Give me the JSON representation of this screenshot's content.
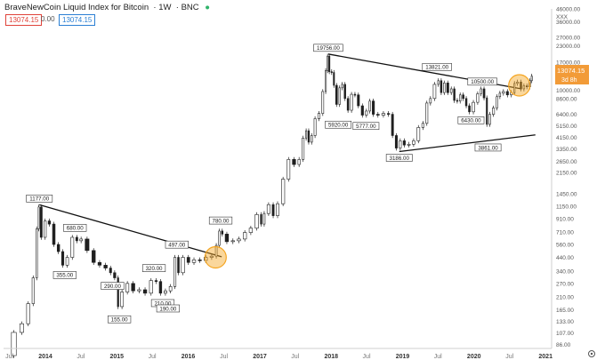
{
  "header": {
    "title": "BraveNewCoin Liquid Index for Bitcoin",
    "interval": "1W",
    "exchange": "BNC",
    "value_a": "13074.15",
    "change": "0.00",
    "value_b": "13074.15"
  },
  "price_tag": {
    "value": "13074.15",
    "countdown": "3d 8h"
  },
  "colors": {
    "up": "#26a69a",
    "down": "#ef5350",
    "candle": "#1f1f1f",
    "highlight": "#f5a623",
    "trend": "#111111"
  },
  "chart_data": {
    "type": "candlestick",
    "title": "BraveNewCoin Liquid Index for Bitcoin",
    "scale": "log",
    "ylim": [
      80,
      46000
    ],
    "xlim": [
      "2013-06",
      "2021-02"
    ],
    "y_ticks": [
      "46000.00",
      "XXX",
      "36000.00",
      "27000.00",
      "23000.00",
      "17000.00",
      "13000.00",
      "10000.00",
      "8600.00",
      "6400.00",
      "5150.00",
      "4150.00",
      "3350.00",
      "2650.00",
      "2150.00",
      "1450.00",
      "1150.00",
      "910.00",
      "710.00",
      "560.00",
      "440.00",
      "340.00",
      "270.00",
      "210.00",
      "165.00",
      "133.00",
      "107.00",
      "86.00"
    ],
    "x_ticks": [
      "Jul",
      "2014",
      "Jul",
      "2015",
      "Jul",
      "2016",
      "Jul",
      "2017",
      "Jul",
      "2018",
      "Jul",
      "2019",
      "Jul",
      "2020",
      "Jul",
      "2021"
    ],
    "annotations": [
      {
        "label": "1177.00",
        "date": "2013-12-01",
        "value": 1177,
        "pos": "above"
      },
      {
        "label": "680.00",
        "date": "2014-06-01",
        "value": 680,
        "pos": "above"
      },
      {
        "label": "355.00",
        "date": "2014-04-10",
        "value": 355,
        "pos": "below"
      },
      {
        "label": "290.00",
        "date": "2014-12-10",
        "value": 290,
        "pos": "below"
      },
      {
        "label": "155.00",
        "date": "2015-01-14",
        "value": 155,
        "pos": "below"
      },
      {
        "label": "320.00",
        "date": "2015-07-10",
        "value": 320,
        "pos": "above"
      },
      {
        "label": "210.00",
        "date": "2015-08-24",
        "value": 210,
        "pos": "below"
      },
      {
        "label": "190.00",
        "date": "2015-09-20",
        "value": 190,
        "pos": "below"
      },
      {
        "label": "497.00",
        "date": "2015-11-04",
        "value": 497,
        "pos": "above"
      },
      {
        "label": "780.00",
        "date": "2016-06-15",
        "value": 780,
        "pos": "above"
      },
      {
        "label": "19756.00",
        "date": "2017-12-17",
        "value": 19756,
        "pos": "above"
      },
      {
        "label": "5920.00",
        "date": "2018-02-06",
        "value": 5920,
        "pos": "below"
      },
      {
        "label": "5777.00",
        "date": "2018-06-28",
        "value": 5777,
        "pos": "below"
      },
      {
        "label": "3186.00",
        "date": "2018-12-15",
        "value": 3186,
        "pos": "below"
      },
      {
        "label": "13821.00",
        "date": "2019-06-26",
        "value": 13821,
        "pos": "above"
      },
      {
        "label": "10500.00",
        "date": "2020-02-13",
        "value": 10500,
        "pos": "above"
      },
      {
        "label": "6430.00",
        "date": "2019-12-17",
        "value": 6430,
        "pos": "below"
      },
      {
        "label": "3861.00",
        "date": "2020-03-13",
        "value": 3861,
        "pos": "below"
      }
    ],
    "trendlines": [
      {
        "from": {
          "date": "2013-12-01",
          "value": 1177
        },
        "to": {
          "date": "2016-06-20",
          "value": 445
        }
      },
      {
        "from": {
          "date": "2017-12-17",
          "value": 19756
        },
        "to": {
          "date": "2020-09-01",
          "value": 10300
        }
      },
      {
        "from": {
          "date": "2018-12-15",
          "value": 3186
        },
        "to": {
          "date": "2020-11-10",
          "value": 4350
        }
      }
    ],
    "highlights": [
      {
        "date": "2016-05-20",
        "value": 440
      },
      {
        "date": "2020-08-20",
        "value": 11000
      }
    ],
    "series": [
      {
        "values": [
          [
            "2013-07-01",
            70
          ],
          [
            "2013-08-15",
            108
          ],
          [
            "2013-09-20",
            127
          ],
          [
            "2013-10-20",
            185
          ],
          [
            "2013-11-10",
            300
          ],
          [
            "2013-11-25",
            750
          ],
          [
            "2013-12-01",
            1130
          ],
          [
            "2013-12-20",
            640
          ],
          [
            "2014-01-10",
            870
          ],
          [
            "2014-02-01",
            820
          ],
          [
            "2014-02-25",
            560
          ],
          [
            "2014-03-20",
            490
          ],
          [
            "2014-04-10",
            380
          ],
          [
            "2014-05-05",
            440
          ],
          [
            "2014-06-01",
            640
          ],
          [
            "2014-06-20",
            600
          ],
          [
            "2014-07-15",
            620
          ],
          [
            "2014-08-20",
            500
          ],
          [
            "2014-09-20",
            400
          ],
          [
            "2014-10-20",
            380
          ],
          [
            "2014-11-20",
            360
          ],
          [
            "2014-12-10",
            330
          ],
          [
            "2015-01-01",
            300
          ],
          [
            "2015-01-14",
            175
          ],
          [
            "2015-02-10",
            230
          ],
          [
            "2015-03-10",
            270
          ],
          [
            "2015-04-10",
            235
          ],
          [
            "2015-05-10",
            240
          ],
          [
            "2015-06-10",
            225
          ],
          [
            "2015-07-10",
            285
          ],
          [
            "2015-08-01",
            280
          ],
          [
            "2015-08-24",
            225
          ],
          [
            "2015-09-20",
            235
          ],
          [
            "2015-10-15",
            255
          ],
          [
            "2015-11-04",
            440
          ],
          [
            "2015-11-20",
            330
          ],
          [
            "2015-12-20",
            440
          ],
          [
            "2016-01-15",
            400
          ],
          [
            "2016-02-15",
            420
          ],
          [
            "2016-03-15",
            415
          ],
          [
            "2016-04-15",
            440
          ],
          [
            "2016-05-15",
            450
          ],
          [
            "2016-06-01",
            550
          ],
          [
            "2016-06-15",
            720
          ],
          [
            "2016-07-01",
            680
          ],
          [
            "2016-08-01",
            590
          ],
          [
            "2016-09-01",
            600
          ],
          [
            "2016-10-01",
            620
          ],
          [
            "2016-11-01",
            700
          ],
          [
            "2016-12-01",
            760
          ],
          [
            "2017-01-01",
            980
          ],
          [
            "2017-01-15",
            820
          ],
          [
            "2017-02-01",
            1000
          ],
          [
            "2017-03-01",
            1180
          ],
          [
            "2017-03-20",
            960
          ],
          [
            "2017-04-15",
            1200
          ],
          [
            "2017-05-15",
            1900
          ],
          [
            "2017-06-10",
            2750
          ],
          [
            "2017-07-10",
            2500
          ],
          [
            "2017-08-01",
            2750
          ],
          [
            "2017-08-20",
            4100
          ],
          [
            "2017-09-01",
            4700
          ],
          [
            "2017-09-15",
            3800
          ],
          [
            "2017-10-01",
            4300
          ],
          [
            "2017-10-20",
            5900
          ],
          [
            "2017-11-10",
            6500
          ],
          [
            "2017-11-28",
            9800
          ],
          [
            "2017-12-10",
            14500
          ],
          [
            "2017-12-17",
            19000
          ],
          [
            "2017-12-28",
            14200
          ],
          [
            "2018-01-10",
            14000
          ],
          [
            "2018-01-20",
            11000
          ],
          [
            "2018-02-06",
            7700
          ],
          [
            "2018-02-20",
            10500
          ],
          [
            "2018-03-05",
            11200
          ],
          [
            "2018-03-20",
            8600
          ],
          [
            "2018-04-05",
            6900
          ],
          [
            "2018-04-25",
            9300
          ],
          [
            "2018-05-10",
            9200
          ],
          [
            "2018-05-30",
            7500
          ],
          [
            "2018-06-20",
            6300
          ],
          [
            "2018-07-10",
            6800
          ],
          [
            "2018-07-25",
            8200
          ],
          [
            "2018-08-15",
            6400
          ],
          [
            "2018-09-10",
            6300
          ],
          [
            "2018-10-10",
            6500
          ],
          [
            "2018-11-01",
            6400
          ],
          [
            "2018-11-20",
            4300
          ],
          [
            "2018-12-10",
            3400
          ],
          [
            "2018-12-30",
            3900
          ],
          [
            "2019-01-20",
            3600
          ],
          [
            "2019-02-15",
            3650
          ],
          [
            "2019-03-10",
            3900
          ],
          [
            "2019-04-05",
            5000
          ],
          [
            "2019-04-25",
            5400
          ],
          [
            "2019-05-15",
            7900
          ],
          [
            "2019-06-01",
            8600
          ],
          [
            "2019-06-26",
            11200
          ],
          [
            "2019-07-10",
            12000
          ],
          [
            "2019-07-25",
            9600
          ],
          [
            "2019-08-10",
            11500
          ],
          [
            "2019-08-30",
            9600
          ],
          [
            "2019-09-15",
            10300
          ],
          [
            "2019-09-30",
            8300
          ],
          [
            "2019-10-15",
            8200
          ],
          [
            "2019-10-30",
            9200
          ],
          [
            "2019-11-15",
            8600
          ],
          [
            "2019-11-30",
            7500
          ],
          [
            "2019-12-17",
            6700
          ],
          [
            "2020-01-10",
            8000
          ],
          [
            "2020-01-30",
            9400
          ],
          [
            "2020-02-13",
            10300
          ],
          [
            "2020-03-01",
            8700
          ],
          [
            "2020-03-13",
            5300
          ],
          [
            "2020-03-30",
            6400
          ],
          [
            "2020-04-20",
            7200
          ],
          [
            "2020-05-05",
            8900
          ],
          [
            "2020-05-20",
            9500
          ],
          [
            "2020-06-10",
            9800
          ],
          [
            "2020-06-30",
            9200
          ],
          [
            "2020-07-20",
            9600
          ],
          [
            "2020-08-01",
            11400
          ],
          [
            "2020-08-20",
            11700
          ],
          [
            "2020-09-05",
            10300
          ],
          [
            "2020-09-20",
            10900
          ],
          [
            "2020-10-05",
            10700
          ],
          [
            "2020-10-20",
            12000
          ],
          [
            "2020-10-25",
            13074
          ]
        ]
      }
    ]
  }
}
